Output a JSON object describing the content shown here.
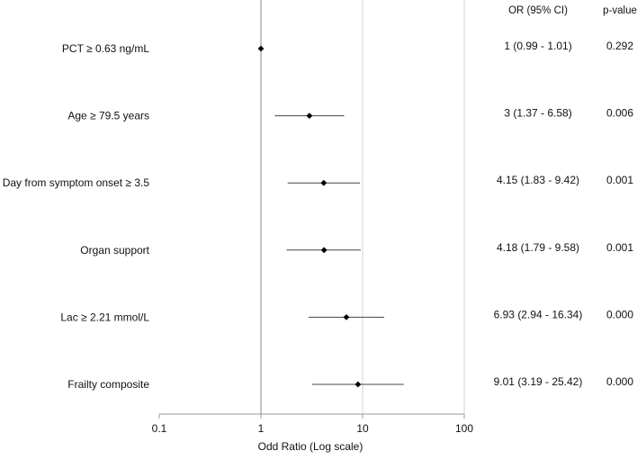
{
  "chart_data": {
    "type": "forest",
    "x_scale": "log",
    "xlim": [
      0.1,
      100
    ],
    "reference_line": 1,
    "xlabel": "Odd Ratio (Log scale)",
    "x_ticks": [
      {
        "value": 0.1,
        "label": "0.1"
      },
      {
        "value": 1,
        "label": "1"
      },
      {
        "value": 10,
        "label": "10"
      },
      {
        "value": 100,
        "label": "100"
      }
    ],
    "column_headers": {
      "ci": "OR (95% CI)",
      "p": "p-value"
    },
    "rows": [
      {
        "label": "PCT ≥ 0.63 ng/mL",
        "or": 1,
        "lo": 0.99,
        "hi": 1.01,
        "ci_text": "1 (0.99 - 1.01)",
        "p": "0.292"
      },
      {
        "label": "Age ≥ 79.5 years",
        "or": 3,
        "lo": 1.37,
        "hi": 6.58,
        "ci_text": "3 (1.37 - 6.58)",
        "p": "0.006"
      },
      {
        "label": "Day from symptom onset ≥ 3.5",
        "or": 4.15,
        "lo": 1.83,
        "hi": 9.42,
        "ci_text": "4.15 (1.83 - 9.42)",
        "p": "0.001"
      },
      {
        "label": "Organ support",
        "or": 4.18,
        "lo": 1.79,
        "hi": 9.58,
        "ci_text": "4.18 (1.79 - 9.58)",
        "p": "0.001"
      },
      {
        "label": "Lac ≥ 2.21 mmol/L",
        "or": 6.93,
        "lo": 2.94,
        "hi": 16.34,
        "ci_text": "6.93 (2.94 - 16.34)",
        "p": "0.000"
      },
      {
        "label": "Frailty composite",
        "or": 9.01,
        "lo": 3.19,
        "hi": 25.42,
        "ci_text": "9.01 (3.19 - 25.42)",
        "p": "0.000"
      }
    ]
  }
}
